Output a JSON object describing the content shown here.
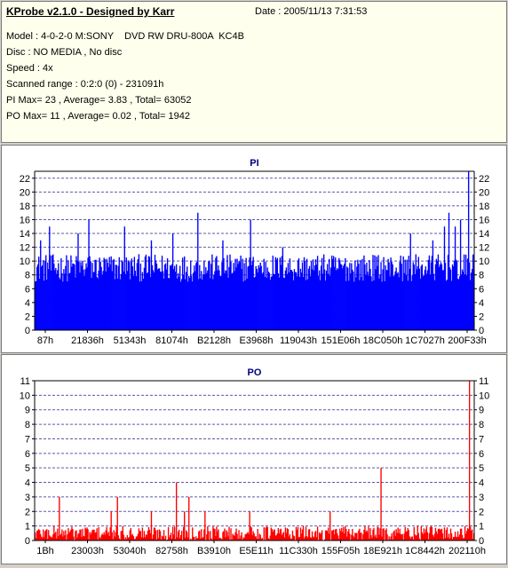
{
  "header": {
    "app_title": "KProbe v2.1.0 - Designed by Karr",
    "date": "Date : 2005/11/13 7:31:53",
    "model": "Model : 4-0-2-0 M:SONY    DVD RW DRU-800A  KC4B",
    "disc": "Disc : NO MEDIA , No disc",
    "speed": "Speed : 4x",
    "scanned_range": "Scanned range : 0:2:0 (0) - 231091h",
    "pi_summary": "PI Max= 23 , Average= 3.83 , Total= 63052",
    "po_summary": "PO Max= 11 , Average= 0.02 , Total= 1942"
  },
  "chart_data": [
    {
      "type": "bar",
      "title": "PI",
      "color": "#0000ff",
      "ylim": [
        0,
        23
      ],
      "yticks": [
        0,
        2,
        4,
        6,
        8,
        10,
        12,
        14,
        16,
        18,
        20,
        22
      ],
      "xlabels": [
        "87h",
        "21836h",
        "51343h",
        "81074h",
        "B2128h",
        "E3968h",
        "119043h",
        "151E06h",
        "18C050h",
        "1C7027h",
        "200F33h"
      ],
      "grid": true,
      "summary": {
        "max": 23,
        "average": 3.83,
        "total": 63052
      },
      "samples": 492,
      "baseline_range": [
        7,
        11
      ],
      "peaks": [
        {
          "i": 6,
          "v": 13
        },
        {
          "i": 16,
          "v": 15
        },
        {
          "i": 48,
          "v": 14
        },
        {
          "i": 60,
          "v": 16
        },
        {
          "i": 100,
          "v": 15
        },
        {
          "i": 130,
          "v": 13
        },
        {
          "i": 154,
          "v": 14
        },
        {
          "i": 182,
          "v": 17
        },
        {
          "i": 210,
          "v": 13
        },
        {
          "i": 241,
          "v": 16
        },
        {
          "i": 277,
          "v": 12
        },
        {
          "i": 420,
          "v": 14
        },
        {
          "i": 445,
          "v": 13
        },
        {
          "i": 458,
          "v": 15
        },
        {
          "i": 463,
          "v": 17
        },
        {
          "i": 470,
          "v": 15
        },
        {
          "i": 476,
          "v": 16
        },
        {
          "i": 485,
          "v": 23
        }
      ]
    },
    {
      "type": "bar",
      "title": "PO",
      "color": "#ff0000",
      "ylim": [
        0,
        11
      ],
      "yticks": [
        0,
        1,
        2,
        3,
        4,
        5,
        6,
        7,
        8,
        9,
        10,
        11
      ],
      "xlabels": [
        "1Bh",
        "23003h",
        "53040h",
        "82758h",
        "B3910h",
        "E5E11h",
        "11C330h",
        "155F05h",
        "18E921h",
        "1C8442h",
        "202110h"
      ],
      "grid": true,
      "summary": {
        "max": 11,
        "average": 0.02,
        "total": 1942
      },
      "samples": 492,
      "baseline_range": [
        0,
        1
      ],
      "peaks": [
        {
          "i": 27,
          "v": 3
        },
        {
          "i": 85,
          "v": 2
        },
        {
          "i": 92,
          "v": 3
        },
        {
          "i": 130,
          "v": 2
        },
        {
          "i": 158,
          "v": 4
        },
        {
          "i": 167,
          "v": 2
        },
        {
          "i": 172,
          "v": 3
        },
        {
          "i": 190,
          "v": 2
        },
        {
          "i": 240,
          "v": 2
        },
        {
          "i": 330,
          "v": 2
        },
        {
          "i": 387,
          "v": 5
        },
        {
          "i": 486,
          "v": 11
        }
      ]
    }
  ]
}
